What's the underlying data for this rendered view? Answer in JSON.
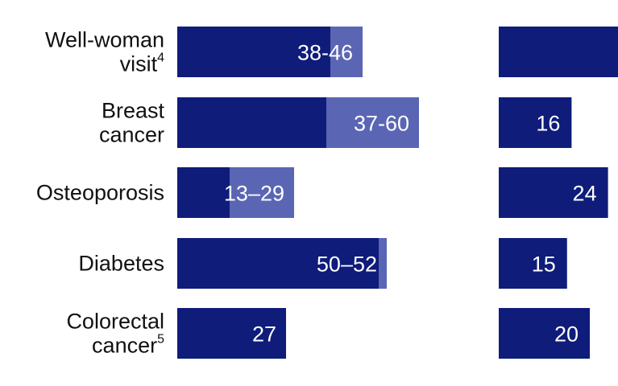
{
  "chart_data": [
    {
      "type": "bar",
      "orientation": "horizontal",
      "categories": [
        {
          "name": "Well-woman visit",
          "superscript": "4"
        },
        {
          "name": "Breast cancer",
          "superscript": ""
        },
        {
          "name": "Osteoporosis",
          "superscript": ""
        },
        {
          "name": "Diabetes",
          "superscript": ""
        },
        {
          "name": "Colorectal cancer",
          "superscript": "5"
        }
      ],
      "ranges": [
        {
          "low": 38,
          "high": 46,
          "label": "38-46"
        },
        {
          "low": 37,
          "high": 60,
          "label": "37-60"
        },
        {
          "low": 13,
          "high": 29,
          "label": "13–29"
        },
        {
          "low": 50,
          "high": 52,
          "label": "50–52"
        },
        {
          "low": 27,
          "high": 27,
          "label": "27"
        }
      ],
      "xlim": [
        0,
        100
      ]
    },
    {
      "type": "bar",
      "orientation": "horizontal",
      "values": [
        null,
        16,
        24,
        15,
        20
      ],
      "labels": [
        "",
        "16",
        "24",
        "15",
        "20"
      ],
      "xlim": [
        0,
        50
      ],
      "clipped_right": true
    }
  ],
  "colors": {
    "bar_dark": "#0f1c7a",
    "bar_light": "#5a66b4",
    "label_text": "#111111",
    "value_text": "#ffffff"
  }
}
